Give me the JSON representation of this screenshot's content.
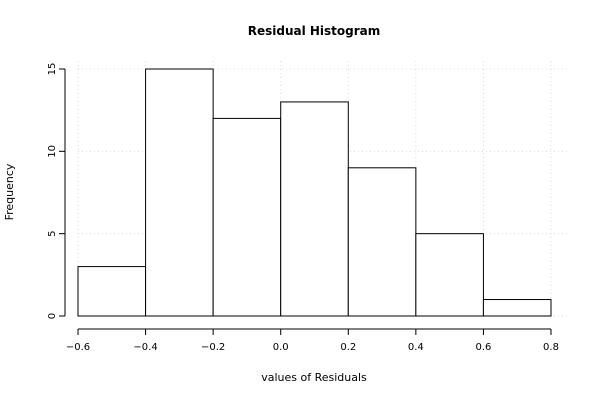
{
  "chart_data": {
    "type": "bar",
    "title": "Residual Histogram",
    "xlabel": "values of Residuals",
    "ylabel": "Frequency",
    "bins": [
      {
        "from": -0.6,
        "to": -0.4,
        "count": 3
      },
      {
        "from": -0.4,
        "to": -0.2,
        "count": 15
      },
      {
        "from": -0.2,
        "to": 0.0,
        "count": 12
      },
      {
        "from": 0.0,
        "to": 0.2,
        "count": 13
      },
      {
        "from": 0.2,
        "to": 0.4,
        "count": 9
      },
      {
        "from": 0.4,
        "to": 0.6,
        "count": 5
      },
      {
        "from": 0.6,
        "to": 0.8,
        "count": 1
      }
    ],
    "xlim": [
      -0.6,
      0.8
    ],
    "ylim": [
      0,
      15
    ],
    "x_ticks": [
      -0.6,
      -0.4,
      -0.2,
      0.0,
      0.2,
      0.4,
      0.6,
      0.8
    ],
    "x_tick_labels": [
      "−0.6",
      "−0.4",
      "−0.2",
      "0.0",
      "0.2",
      "0.4",
      "0.6",
      "0.8"
    ],
    "y_ticks": [
      0,
      5,
      10,
      15
    ],
    "y_tick_labels": [
      "0",
      "5",
      "10",
      "15"
    ],
    "grid": true,
    "colors": {
      "bar_fill": "#ffffff",
      "bar_stroke": "#000000",
      "grid": "#d9d9d9"
    }
  }
}
